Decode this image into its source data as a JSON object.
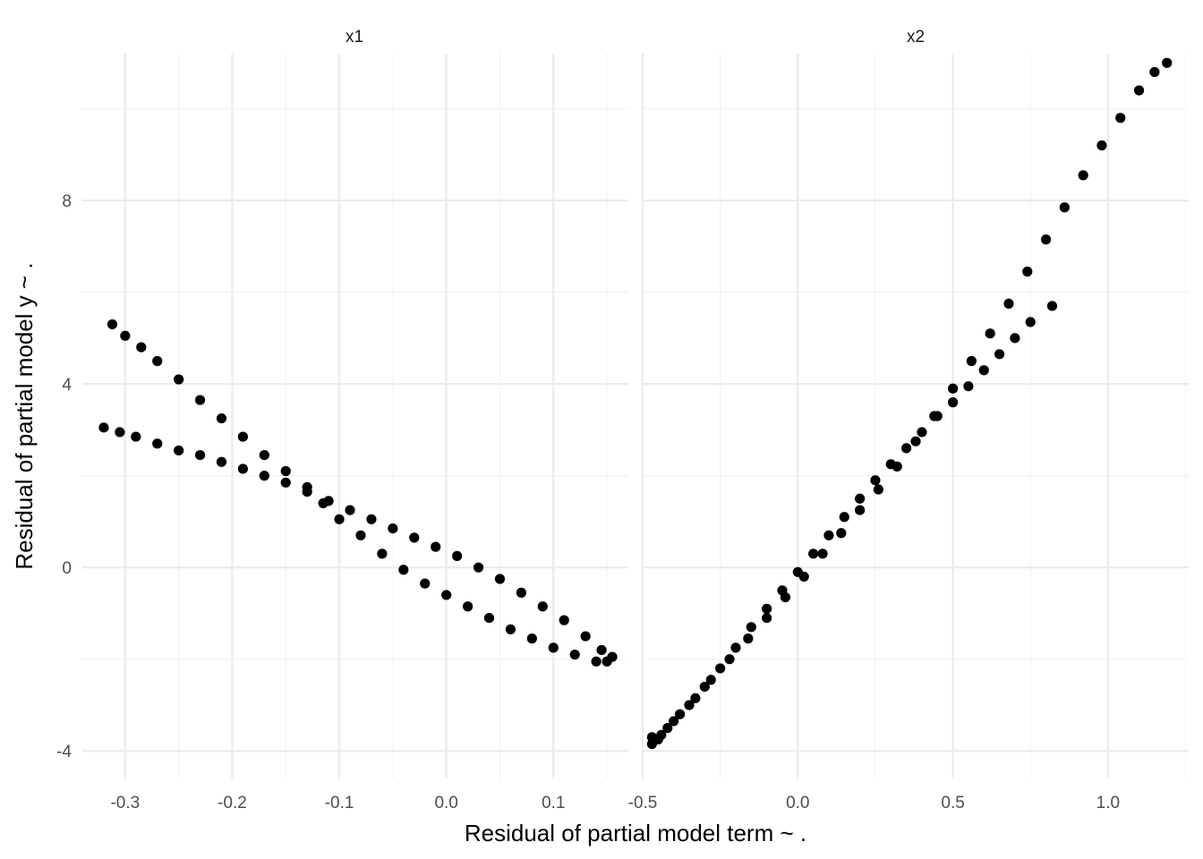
{
  "chart_data": {
    "type": "scatter",
    "facet_layout": "1 row x 2 columns, shared y axis, free x axis",
    "xlabel": "Residual of partial model term ~ .",
    "ylabel": "Residual of partial model y ~ .",
    "grid": true,
    "theme": "minimal",
    "point_color": "#000000",
    "grid_color": "#ebebeb",
    "ylim": [
      -4.6,
      11.2
    ],
    "yticks": [
      -4,
      0,
      4,
      8
    ],
    "ytick_labels": [
      "-4",
      "0",
      "4",
      "8"
    ],
    "panels": [
      {
        "strip": "x1",
        "xlim": [
          -0.34,
          0.17
        ],
        "xticks": [
          -0.3,
          -0.2,
          -0.1,
          0.0,
          0.1
        ],
        "xtick_labels": [
          "-0.3",
          "-0.2",
          "-0.1",
          "0.0",
          "0.1"
        ],
        "points": [
          [
            -0.312,
            5.3
          ],
          [
            -0.3,
            5.05
          ],
          [
            -0.285,
            4.8
          ],
          [
            -0.27,
            4.5
          ],
          [
            -0.25,
            4.1
          ],
          [
            -0.23,
            3.65
          ],
          [
            -0.21,
            3.25
          ],
          [
            -0.19,
            2.85
          ],
          [
            -0.17,
            2.45
          ],
          [
            -0.15,
            2.1
          ],
          [
            -0.13,
            1.75
          ],
          [
            -0.115,
            1.4
          ],
          [
            -0.1,
            1.05
          ],
          [
            -0.08,
            0.7
          ],
          [
            -0.06,
            0.3
          ],
          [
            -0.04,
            -0.05
          ],
          [
            -0.02,
            -0.35
          ],
          [
            0.0,
            -0.6
          ],
          [
            0.02,
            -0.85
          ],
          [
            0.04,
            -1.1
          ],
          [
            0.06,
            -1.35
          ],
          [
            0.08,
            -1.55
          ],
          [
            0.1,
            -1.75
          ],
          [
            0.12,
            -1.9
          ],
          [
            0.14,
            -2.05
          ],
          [
            0.15,
            -2.05
          ],
          [
            0.155,
            -1.95
          ],
          [
            0.145,
            -1.8
          ],
          [
            0.13,
            -1.5
          ],
          [
            0.11,
            -1.15
          ],
          [
            0.09,
            -0.85
          ],
          [
            0.07,
            -0.55
          ],
          [
            0.05,
            -0.25
          ],
          [
            0.03,
            0.0
          ],
          [
            0.01,
            0.25
          ],
          [
            -0.01,
            0.45
          ],
          [
            -0.03,
            0.65
          ],
          [
            -0.05,
            0.85
          ],
          [
            -0.07,
            1.05
          ],
          [
            -0.09,
            1.25
          ],
          [
            -0.11,
            1.45
          ],
          [
            -0.13,
            1.65
          ],
          [
            -0.15,
            1.85
          ],
          [
            -0.17,
            2.0
          ],
          [
            -0.19,
            2.15
          ],
          [
            -0.21,
            2.3
          ],
          [
            -0.23,
            2.45
          ],
          [
            -0.25,
            2.55
          ],
          [
            -0.27,
            2.7
          ],
          [
            -0.29,
            2.85
          ],
          [
            -0.305,
            2.95
          ],
          [
            -0.32,
            3.05
          ]
        ]
      },
      {
        "strip": "x2",
        "xlim": [
          -0.5,
          1.26
        ],
        "xticks": [
          -0.5,
          0.0,
          0.5,
          1.0
        ],
        "xtick_labels": [
          "-0.5",
          "0.0",
          "0.5",
          "1.0"
        ],
        "points": [
          [
            0.82,
            5.7
          ],
          [
            0.75,
            5.35
          ],
          [
            0.7,
            5.0
          ],
          [
            0.65,
            4.65
          ],
          [
            0.6,
            4.3
          ],
          [
            0.55,
            3.95
          ],
          [
            0.5,
            3.6
          ],
          [
            0.45,
            3.3
          ],
          [
            0.4,
            2.95
          ],
          [
            0.35,
            2.6
          ],
          [
            0.3,
            2.25
          ],
          [
            0.25,
            1.9
          ],
          [
            0.2,
            1.5
          ],
          [
            0.15,
            1.1
          ],
          [
            0.1,
            0.7
          ],
          [
            0.05,
            0.3
          ],
          [
            0.0,
            -0.1
          ],
          [
            -0.05,
            -0.5
          ],
          [
            -0.1,
            -0.9
          ],
          [
            -0.15,
            -1.3
          ],
          [
            -0.2,
            -1.75
          ],
          [
            -0.25,
            -2.2
          ],
          [
            -0.3,
            -2.6
          ],
          [
            -0.35,
            -3.0
          ],
          [
            -0.4,
            -3.35
          ],
          [
            -0.44,
            -3.65
          ],
          [
            -0.47,
            -3.85
          ],
          [
            -0.47,
            -3.7
          ],
          [
            -0.45,
            -3.75
          ],
          [
            -0.42,
            -3.5
          ],
          [
            -0.38,
            -3.2
          ],
          [
            -0.33,
            -2.85
          ],
          [
            -0.28,
            -2.45
          ],
          [
            -0.22,
            -2.0
          ],
          [
            -0.16,
            -1.55
          ],
          [
            -0.1,
            -1.1
          ],
          [
            -0.04,
            -0.65
          ],
          [
            0.02,
            -0.2
          ],
          [
            0.08,
            0.3
          ],
          [
            0.14,
            0.75
          ],
          [
            0.2,
            1.25
          ],
          [
            0.26,
            1.7
          ],
          [
            0.32,
            2.2
          ],
          [
            0.38,
            2.75
          ],
          [
            0.44,
            3.3
          ],
          [
            0.5,
            3.9
          ],
          [
            0.56,
            4.5
          ],
          [
            0.62,
            5.1
          ],
          [
            0.68,
            5.75
          ],
          [
            0.74,
            6.45
          ],
          [
            0.8,
            7.15
          ],
          [
            0.86,
            7.85
          ],
          [
            0.92,
            8.55
          ],
          [
            0.98,
            9.2
          ],
          [
            1.04,
            9.8
          ],
          [
            1.1,
            10.4
          ],
          [
            1.15,
            10.8
          ],
          [
            1.19,
            11.0
          ]
        ]
      }
    ]
  }
}
